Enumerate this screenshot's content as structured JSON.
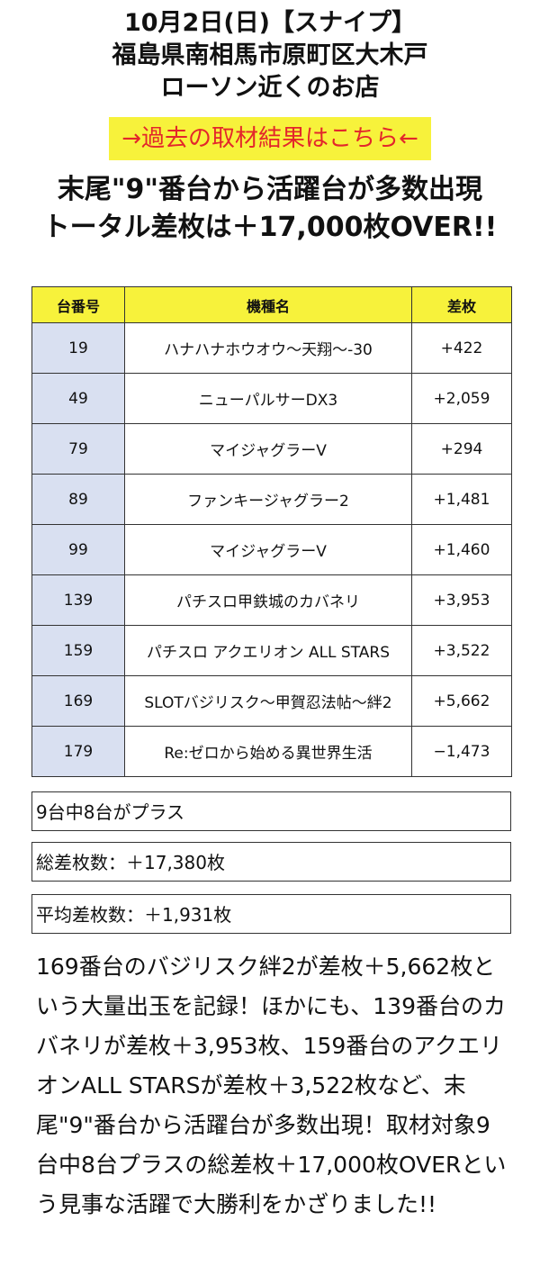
{
  "header": {
    "line1": "10月2日(日)【スナイプ】",
    "line2": "福島県南相馬市原町区大木戸",
    "line3": "ローソン近くのお店"
  },
  "link_banner": "→過去の取材結果はこちら←",
  "headline": {
    "line1": "末尾\"9\"番台から活躍台が多数出現",
    "line2": "トータル差枚は＋17,000枚OVER!!"
  },
  "table": {
    "headers": [
      "台番号",
      "機種名",
      "差枚"
    ],
    "rows": [
      {
        "num": "19",
        "name": "ハナハナホウオウ〜天翔〜-30",
        "diff": "+422"
      },
      {
        "num": "49",
        "name": "ニューパルサーDX3",
        "diff": "+2,059"
      },
      {
        "num": "79",
        "name": "マイジャグラーV",
        "diff": "+294"
      },
      {
        "num": "89",
        "name": "ファンキージャグラー2",
        "diff": "+1,481"
      },
      {
        "num": "99",
        "name": "マイジャグラーV",
        "diff": "+1,460"
      },
      {
        "num": "139",
        "name": "パチスロ甲鉄城のカバネリ",
        "diff": "+3,953"
      },
      {
        "num": "159",
        "name": "パチスロ アクエリオン ALL STARS",
        "diff": "+3,522"
      },
      {
        "num": "169",
        "name": "SLOTバジリスク〜甲賀忍法帖〜絆2",
        "diff": "+5,662"
      },
      {
        "num": "179",
        "name": "Re:ゼロから始める異世界生活",
        "diff": "−1,473"
      }
    ]
  },
  "summary": {
    "plus_count": "9台中8台がプラス",
    "total": "総差枚数：＋17,380枚",
    "average": "平均差枚数：＋1,931枚"
  },
  "body_text": "169番台のバジリスク絆2が差枚＋5,662枚という大量出玉を記録！ほかにも、139番台のカバネリが差枚＋3,953枚、159番台のアクエリオンALL STARSが差枚＋3,522枚など、末尾\"9\"番台から活躍台が多数出現！取材対象9台中8台プラスの総差枚＋17,000枚OVERという見事な活躍で大勝利をかざりました!!",
  "colors": {
    "highlight_yellow": "#f7f23b",
    "link_red": "#e3262b",
    "number_column_blue": "#d9e0f1"
  }
}
